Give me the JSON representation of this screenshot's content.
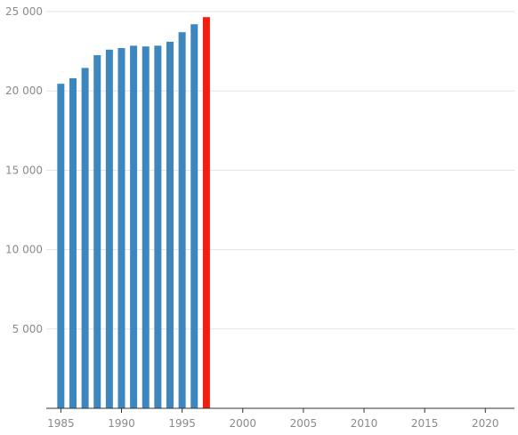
{
  "chart_data": {
    "type": "bar",
    "title": "",
    "xlabel": "",
    "ylabel": "",
    "x": [
      1985,
      1986,
      1987,
      1988,
      1989,
      1990,
      1991,
      1992,
      1993,
      1994,
      1995,
      1996,
      1997
    ],
    "values": [
      20450,
      20800,
      21450,
      22250,
      22600,
      22700,
      22850,
      22800,
      22850,
      23100,
      23700,
      24200,
      24650
    ],
    "highlight_x": 1997,
    "xlim": [
      1983.8,
      2022.4
    ],
    "ylim": [
      0,
      25000
    ],
    "x_ticks": [
      "1985",
      "1990",
      "1995",
      "2000",
      "2005",
      "2010",
      "2015",
      "2020"
    ],
    "y_ticks": [
      "5 000",
      "10 000",
      "15 000",
      "20 000",
      "25 000"
    ],
    "grid": "horizontal",
    "colors": {
      "bar": "#3d87be",
      "highlight": "#f01f0f"
    }
  }
}
